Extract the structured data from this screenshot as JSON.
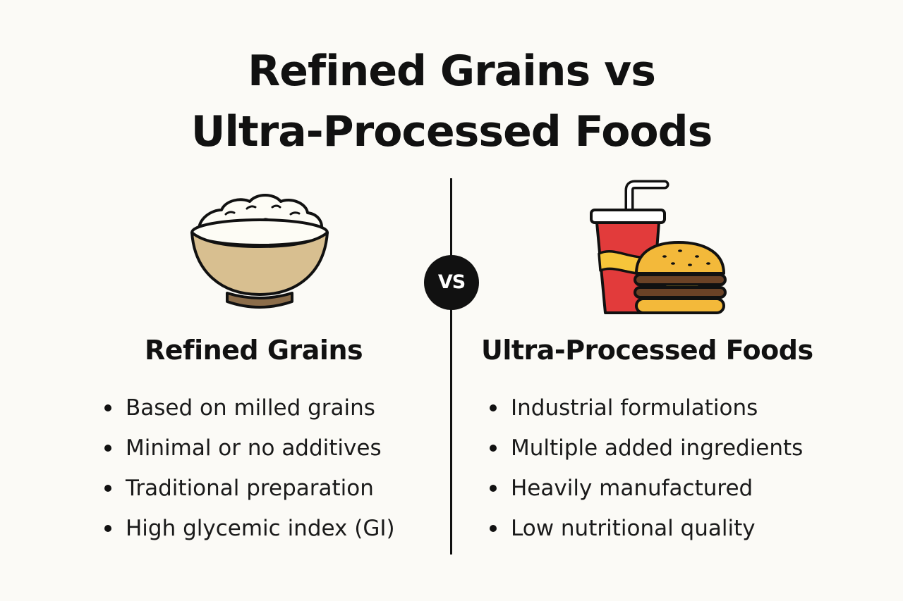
{
  "title": {
    "line1": "Refined Grains vs",
    "line2": "Ultra-Processed Foods"
  },
  "vs_label": "VS",
  "left": {
    "heading": "Refined Grains",
    "icon": "rice-bowl-icon",
    "items": [
      "Based on milled grains",
      "Minimal or no additives",
      "Traditional preparation",
      "High glycemic index (GI)"
    ]
  },
  "right": {
    "heading": "Ultra-Processed Foods",
    "icon": "soda-and-burger-icon",
    "items": [
      "Industrial formulations",
      "Multiple added ingredients",
      "Heavily manufactured",
      "Low nutritional quality"
    ]
  },
  "colors": {
    "background": "#fbfaf6",
    "ink": "#111111",
    "bowl": "#d8bf90",
    "bowl_base": "#8c6d4a",
    "rice": "#fdfcf5",
    "cup_red": "#e23b3b",
    "cup_yellow": "#f6c53a",
    "bun": "#f3b93a",
    "patty": "#6b4226",
    "cheese": "#ffd43a"
  }
}
